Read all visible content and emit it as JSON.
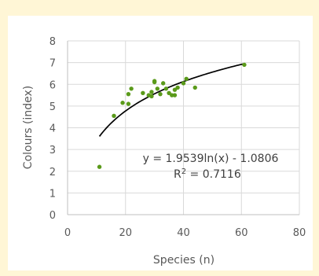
{
  "chart_data": {
    "type": "scatter",
    "title": "",
    "xlabel": "Species (n)",
    "ylabel": "Colours (index)",
    "xlim": [
      0,
      80
    ],
    "ylim": [
      0,
      8
    ],
    "x_ticks": [
      0,
      20,
      40,
      60,
      80
    ],
    "y_ticks": [
      0,
      1,
      2,
      3,
      4,
      5,
      6,
      7,
      8
    ],
    "grid": true,
    "marker_color": "#5a9a1a",
    "trendline_color": "#000000",
    "points": [
      {
        "x": 11,
        "y": 2.2
      },
      {
        "x": 16,
        "y": 4.55
      },
      {
        "x": 19,
        "y": 5.15
      },
      {
        "x": 21,
        "y": 5.1
      },
      {
        "x": 21,
        "y": 5.55
      },
      {
        "x": 22,
        "y": 5.8
      },
      {
        "x": 26,
        "y": 5.6
      },
      {
        "x": 28,
        "y": 5.5
      },
      {
        "x": 29,
        "y": 5.45
      },
      {
        "x": 29,
        "y": 5.65
      },
      {
        "x": 30,
        "y": 6.1
      },
      {
        "x": 30,
        "y": 6.15
      },
      {
        "x": 31,
        "y": 5.8
      },
      {
        "x": 32,
        "y": 5.55
      },
      {
        "x": 33,
        "y": 6.05
      },
      {
        "x": 34,
        "y": 5.8
      },
      {
        "x": 35,
        "y": 5.6
      },
      {
        "x": 36,
        "y": 5.5
      },
      {
        "x": 37,
        "y": 5.5
      },
      {
        "x": 37,
        "y": 5.75
      },
      {
        "x": 38,
        "y": 5.85
      },
      {
        "x": 40,
        "y": 6.05
      },
      {
        "x": 41,
        "y": 6.25
      },
      {
        "x": 44,
        "y": 5.85
      },
      {
        "x": 61,
        "y": 6.9
      }
    ],
    "trendline": {
      "type": "log",
      "a": 1.9539,
      "b": -1.0806,
      "x_range": [
        11,
        61
      ],
      "equation_label": "y = 1.9539ln(x) - 1.0806",
      "r2_label_prefix": "R",
      "r2_label_sup": "2",
      "r2_label_suffix": " = 0.7116"
    }
  }
}
